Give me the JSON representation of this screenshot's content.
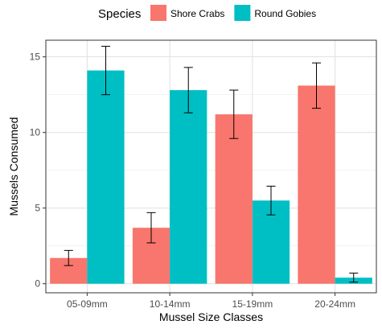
{
  "chart_data": {
    "type": "bar",
    "title": "",
    "xlabel": "Mussel Size Classes",
    "ylabel": "Mussels Consumed",
    "categories": [
      "05-09mm",
      "10-14mm",
      "15-19mm",
      "20-24mm"
    ],
    "ylim": [
      -0.6,
      16.1
    ],
    "yticks": [
      0,
      5,
      10,
      15
    ],
    "grid": true,
    "legend_position": "top",
    "legend_title": "Species",
    "series": [
      {
        "name": "Shore Crabs",
        "color": "#F8766D",
        "values": [
          1.7,
          3.7,
          11.2,
          13.1
        ],
        "error": [
          0.5,
          1.0,
          1.6,
          1.5
        ]
      },
      {
        "name": "Round Gobies",
        "color": "#00BFC4",
        "values": [
          14.1,
          12.8,
          5.5,
          0.4
        ],
        "error": [
          1.6,
          1.5,
          0.95,
          0.3
        ]
      }
    ]
  }
}
